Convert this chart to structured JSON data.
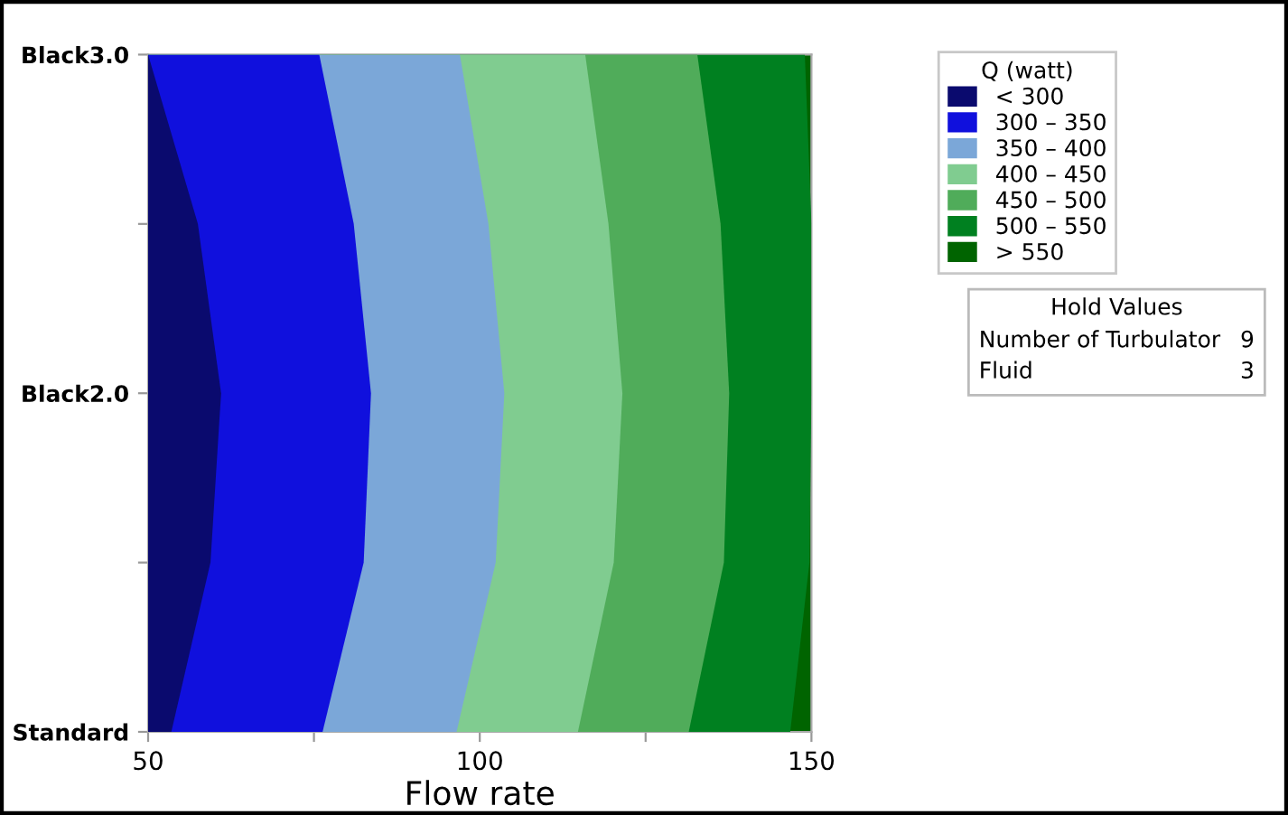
{
  "chart_data": {
    "type": "area",
    "orientation": "horizontal",
    "xlabel": "Flow rate",
    "legend_title": "Q (watt)",
    "legend": "top right",
    "xlim": [
      50,
      150
    ],
    "xticks": [
      50,
      {
        "value": 75,
        "label": null
      },
      100,
      {
        "value": 125,
        "label": null
      },
      150
    ],
    "categories": [
      "Black3.0",
      null,
      "Black2.0",
      null,
      "Standard"
    ],
    "series": [
      {
        "name": "< 300",
        "color": "#0a0a6e",
        "values": [
          50,
          57.5,
          61,
          59.4,
          53.5
        ]
      },
      {
        "name": "300 – 350",
        "color": "#1010dd",
        "values": [
          75.8,
          81,
          83.6,
          82.5,
          76.3
        ]
      },
      {
        "name": "350 – 400",
        "color": "#7ba7d8",
        "values": [
          97,
          101.3,
          103.7,
          102.4,
          96.5
        ]
      },
      {
        "name": "400 – 450",
        "color": "#80cc90",
        "values": [
          115.9,
          119.4,
          121.5,
          120.2,
          114.8
        ]
      },
      {
        "name": "450 – 500",
        "color": "#50ac5a",
        "values": [
          132.8,
          136.3,
          137.6,
          136.8,
          131.5
        ]
      },
      {
        "name": "500 – 550",
        "color": "#008020",
        "values": [
          149,
          150,
          150,
          149.7,
          146.8
        ]
      },
      {
        "name": "> 550",
        "color": "#006400",
        "values": [
          null,
          null,
          null,
          null,
          null
        ]
      }
    ],
    "annotations": [
      "Hold Values",
      "Number of Turbulator",
      "9",
      "Fluid",
      "3"
    ]
  }
}
